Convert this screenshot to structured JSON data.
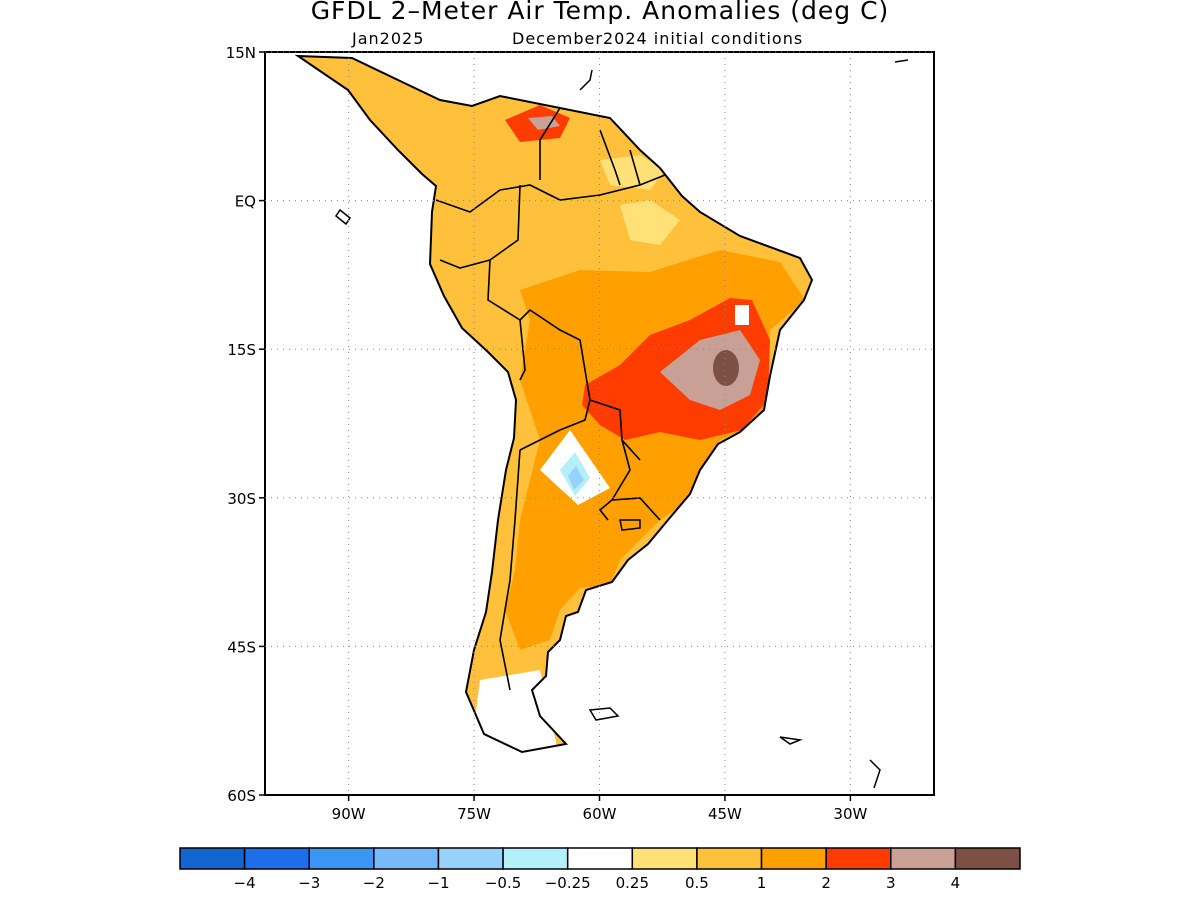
{
  "title": "GFDL 2–Meter Air Temp. Anomalies (deg C)",
  "subtitle_month": "Jan2025",
  "subtitle_conditions": "December2024 initial conditions",
  "map": {
    "lat_labels": [
      "15N",
      "EQ",
      "15S",
      "30S",
      "45S",
      "60S"
    ],
    "lon_labels": [
      "90W",
      "75W",
      "60W",
      "45W",
      "30W"
    ],
    "lat_values": [
      15,
      0,
      -15,
      -30,
      -45,
      -60
    ],
    "lon_values": [
      -90,
      -75,
      -60,
      -45,
      -30
    ],
    "extent": {
      "lon_min": -100,
      "lon_max": -20,
      "lat_min": -60,
      "lat_max": 15
    }
  },
  "colorbar": {
    "colors": [
      "#1464d2",
      "#1e6eeb",
      "#3c96f5",
      "#78b9fa",
      "#96d2fa",
      "#b4f0fa",
      "#ffffff",
      "#ffe178",
      "#ffc03c",
      "#ffa000",
      "#ff3c00",
      "#c8a096",
      "#7d5046"
    ],
    "labels": [
      "−4",
      "−3",
      "−2",
      "−1",
      "−0.5",
      "−0.25",
      "0.25",
      "0.5",
      "1",
      "2",
      "3",
      "4"
    ]
  },
  "anomaly_levels": {
    "lightorange": "#ffc03c",
    "orange": "#ffa000",
    "red": "#ff3c00",
    "tan": "#c8a096",
    "brown": "#7d5046",
    "yellow": "#ffe178",
    "lightblue": "#96d2fa",
    "cyan": "#b4f0fa",
    "white": "#ffffff"
  }
}
